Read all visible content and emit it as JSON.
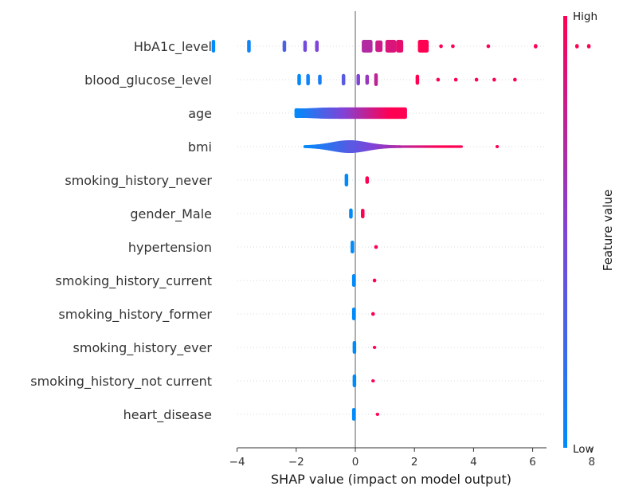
{
  "chart_data": {
    "type": "scatter",
    "subtype": "shap-beeswarm",
    "xlabel": "SHAP value (impact on model output)",
    "xlim": [
      -5.4,
      8.6
    ],
    "xticks": [
      -4,
      -2,
      0,
      2,
      4,
      6,
      8
    ],
    "xtick_labels": [
      "−4",
      "−2",
      "0",
      "2",
      "4",
      "6",
      "8"
    ],
    "grid": false,
    "colorbar": {
      "title": "Feature value",
      "high_label": "High",
      "low_label": "Low",
      "low_color": "#008bfb",
      "high_color": "#ff0052"
    },
    "features": [
      {
        "name": "HbA1c_level",
        "clusters": [
          {
            "x": -4.8,
            "v": 0.0,
            "w": 1,
            "h": 1
          },
          {
            "x": -3.6,
            "v": 0.05,
            "w": 1,
            "h": 1
          },
          {
            "x": -2.4,
            "v": 0.3,
            "w": 1,
            "h": 0.9
          },
          {
            "x": -1.7,
            "v": 0.45,
            "w": 1,
            "h": 0.9
          },
          {
            "x": -1.3,
            "v": 0.5,
            "w": 1,
            "h": 0.9
          },
          {
            "x": 0.4,
            "v": 0.7,
            "w": 3,
            "h": 1
          },
          {
            "x": 0.8,
            "v": 0.8,
            "w": 2,
            "h": 0.9
          },
          {
            "x": 1.2,
            "v": 0.85,
            "w": 3,
            "h": 1
          },
          {
            "x": 1.5,
            "v": 0.9,
            "w": 2,
            "h": 1
          },
          {
            "x": 2.3,
            "v": 1.0,
            "w": 3,
            "h": 1
          },
          {
            "x": 2.9,
            "v": 1.0,
            "w": 0.5,
            "h": 0.3
          },
          {
            "x": 3.3,
            "v": 1.0,
            "w": 0.5,
            "h": 0.3
          },
          {
            "x": 4.5,
            "v": 1.0,
            "w": 0.5,
            "h": 0.3
          },
          {
            "x": 6.1,
            "v": 1.0,
            "w": 0.5,
            "h": 0.35
          },
          {
            "x": 7.5,
            "v": 1.0,
            "w": 0.5,
            "h": 0.35
          },
          {
            "x": 7.9,
            "v": 1.0,
            "w": 0.5,
            "h": 0.35
          }
        ]
      },
      {
        "name": "blood_glucose_level",
        "clusters": [
          {
            "x": -1.9,
            "v": 0.0,
            "w": 1,
            "h": 0.9
          },
          {
            "x": -1.6,
            "v": 0.05,
            "w": 1,
            "h": 0.9
          },
          {
            "x": -1.2,
            "v": 0.1,
            "w": 0.5,
            "h": 0.8
          },
          {
            "x": -0.4,
            "v": 0.35,
            "w": 1,
            "h": 0.9
          },
          {
            "x": 0.1,
            "v": 0.5,
            "w": 1,
            "h": 0.9
          },
          {
            "x": 0.4,
            "v": 0.6,
            "w": 1,
            "h": 0.8
          },
          {
            "x": 0.7,
            "v": 0.75,
            "w": 1,
            "h": 1
          },
          {
            "x": 2.1,
            "v": 1.0,
            "w": 0.5,
            "h": 0.8
          },
          {
            "x": 2.8,
            "v": 1.0,
            "w": 0.5,
            "h": 0.3
          },
          {
            "x": 3.4,
            "v": 1.0,
            "w": 0.5,
            "h": 0.3
          },
          {
            "x": 4.1,
            "v": 1.0,
            "w": 0.5,
            "h": 0.3
          },
          {
            "x": 4.7,
            "v": 1.0,
            "w": 0.5,
            "h": 0.3
          },
          {
            "x": 5.4,
            "v": 1.0,
            "w": 0.5,
            "h": 0.3
          }
        ]
      },
      {
        "name": "age",
        "range": {
          "xmin": -2.0,
          "xmax": 1.7,
          "peak": -1.8,
          "peak_h": 0.75,
          "end_h": 0.9,
          "vmin": 0.0,
          "vmax": 1.0
        }
      },
      {
        "name": "bmi",
        "range": {
          "xmin": -1.7,
          "xmax": 3.6,
          "peak": -0.2,
          "peak_h": 1.0,
          "end_h": 0.2,
          "vmin": 0.0,
          "vmax": 1.0
        },
        "clusters": [
          {
            "x": -0.15,
            "v": 0.35,
            "w": 2,
            "h": 1
          },
          {
            "x": 4.8,
            "v": 1.0,
            "w": 0.5,
            "h": 0.25
          }
        ]
      },
      {
        "name": "smoking_history_never",
        "clusters": [
          {
            "x": -0.3,
            "v": 0.0,
            "w": 1,
            "h": 1
          },
          {
            "x": 0.4,
            "v": 1.0,
            "w": 0.5,
            "h": 0.6
          }
        ]
      },
      {
        "name": "gender_Male",
        "clusters": [
          {
            "x": -0.15,
            "v": 0.0,
            "w": 1,
            "h": 0.8
          },
          {
            "x": 0.25,
            "v": 1.0,
            "w": 1,
            "h": 0.75
          }
        ]
      },
      {
        "name": "hypertension",
        "clusters": [
          {
            "x": -0.1,
            "v": 0.0,
            "w": 1,
            "h": 1
          },
          {
            "x": 0.7,
            "v": 1.0,
            "w": 0.5,
            "h": 0.3
          }
        ]
      },
      {
        "name": "smoking_history_current",
        "clusters": [
          {
            "x": -0.05,
            "v": 0.0,
            "w": 1,
            "h": 1
          },
          {
            "x": 0.65,
            "v": 1.0,
            "w": 0.5,
            "h": 0.3
          }
        ]
      },
      {
        "name": "smoking_history_former",
        "clusters": [
          {
            "x": -0.05,
            "v": 0.0,
            "w": 1,
            "h": 1
          },
          {
            "x": 0.6,
            "v": 1.0,
            "w": 0.5,
            "h": 0.3
          }
        ]
      },
      {
        "name": "smoking_history_ever",
        "clusters": [
          {
            "x": -0.03,
            "v": 0.0,
            "w": 1,
            "h": 1
          },
          {
            "x": 0.65,
            "v": 1.0,
            "w": 0.5,
            "h": 0.25
          }
        ]
      },
      {
        "name": "smoking_history_not current",
        "clusters": [
          {
            "x": -0.03,
            "v": 0.0,
            "w": 1,
            "h": 1
          },
          {
            "x": 0.6,
            "v": 1.0,
            "w": 0.5,
            "h": 0.25
          }
        ]
      },
      {
        "name": "heart_disease",
        "clusters": [
          {
            "x": -0.05,
            "v": 0.0,
            "w": 1,
            "h": 1
          },
          {
            "x": 0.75,
            "v": 1.0,
            "w": 0.5,
            "h": 0.25
          }
        ]
      }
    ]
  }
}
